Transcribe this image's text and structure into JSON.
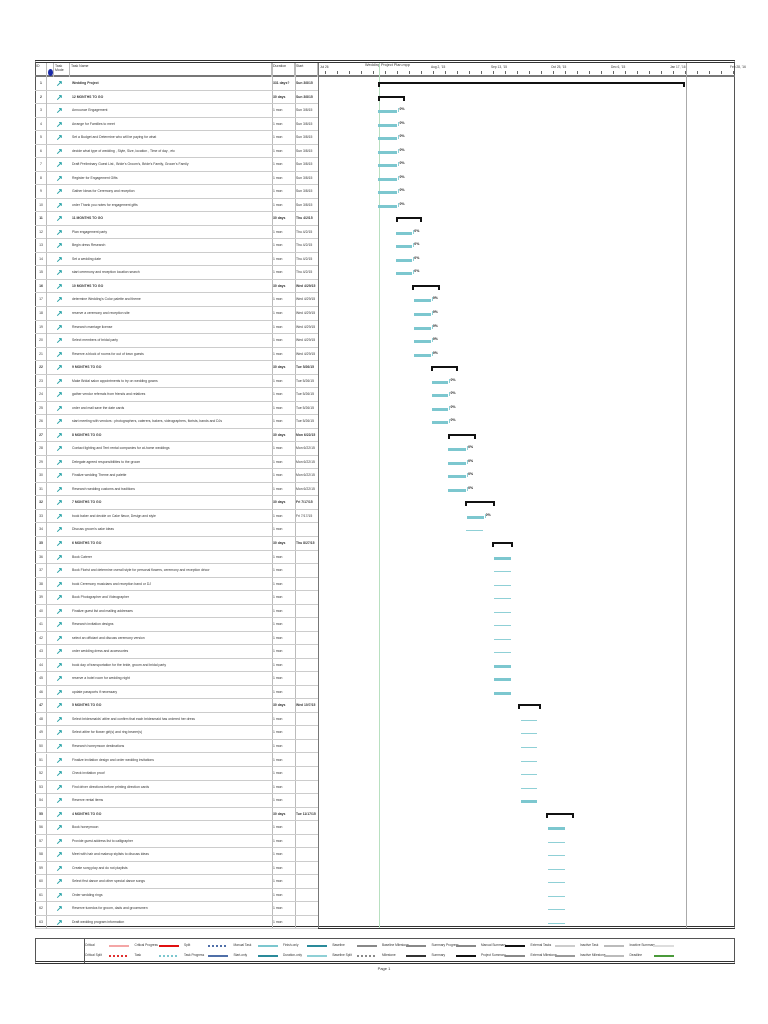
{
  "header": {
    "id": "ID",
    "indicators": "i",
    "mode": "Task Mode",
    "name": "Task Name",
    "duration": "Duration",
    "start": "Start",
    "chart_title": "Wedding Project Plan.mpp",
    "timescale": [
      "Jul 26",
      "Aug 2, '15",
      "Sep 13, '15",
      "Oct 25, '15",
      "Dec 6, '15",
      "Jan 17, '16",
      "Feb 28, '16"
    ]
  },
  "colors": {
    "task": "#7cc7cf",
    "summary": "#111111",
    "mode_icon": "#2aa3a8"
  },
  "tasks": [
    {
      "id": "1",
      "name": "Wedding Project",
      "duration": "331 days?",
      "start": "Sun 3/8/15",
      "summary": true,
      "bar": [
        0,
        331
      ]
    },
    {
      "id": "2",
      "name": "12 MONTHS TO GO",
      "duration": "30 days",
      "start": "Sun 3/8/15",
      "summary": true,
      "bar": [
        0,
        29
      ]
    },
    {
      "id": "3",
      "name": "Announce Engagement",
      "duration": "1 mon",
      "start": "Sun 3/8/15",
      "bar": [
        0,
        21
      ],
      "pct": "0%"
    },
    {
      "id": "4",
      "name": "Arrange for Families to meet",
      "duration": "1 mon",
      "start": "Sun 3/8/15",
      "bar": [
        0,
        21
      ],
      "pct": "0%"
    },
    {
      "id": "5",
      "name": "Set a Budget and Determine who will be paying for what",
      "duration": "1 mon",
      "start": "Sun 3/8/15",
      "bar": [
        0,
        21
      ],
      "pct": "0%"
    },
    {
      "id": "6",
      "name": "decide what type of wedding , Style, Size, location , Time of day , etc",
      "duration": "1 mon",
      "start": "Sun 3/8/15",
      "bar": [
        0,
        21
      ],
      "pct": "0%"
    },
    {
      "id": "7",
      "name": "Draft Preliminary Guest List , Bride's Groom's, Bride's Family, Groom's Family",
      "duration": "1 mon",
      "start": "Sun 3/8/15",
      "bar": [
        0,
        21
      ],
      "pct": "0%"
    },
    {
      "id": "8",
      "name": "Register for Engagement Gifts",
      "duration": "1 mon",
      "start": "Sun 3/8/15",
      "bar": [
        0,
        21
      ],
      "pct": "0%"
    },
    {
      "id": "9",
      "name": "Gather Ideas for Ceremony and reception",
      "duration": "1 mon",
      "start": "Sun 3/8/15",
      "bar": [
        0,
        21
      ],
      "pct": "0%"
    },
    {
      "id": "10",
      "name": "order Thank you notes for engagement gifts",
      "duration": "1 mon",
      "start": "Sun 3/8/15",
      "bar": [
        0,
        21
      ],
      "pct": "0%"
    },
    {
      "id": "11",
      "name": "11 MONTHS TO GO",
      "duration": "30 days",
      "start": "Thu 4/2/15",
      "summary": true,
      "bar": [
        19,
        47
      ]
    },
    {
      "id": "12",
      "name": "Plan engagement party",
      "duration": "1 mon",
      "start": "Thu 4/2/15",
      "bar": [
        19,
        37
      ],
      "pct": "0%"
    },
    {
      "id": "13",
      "name": "Begin dress Research",
      "duration": "1 mon",
      "start": "Thu 4/2/15",
      "bar": [
        19,
        37
      ],
      "pct": "0%"
    },
    {
      "id": "14",
      "name": "Set a wedding date",
      "duration": "1 mon",
      "start": "Thu 4/2/15",
      "bar": [
        19,
        37
      ],
      "pct": "0%"
    },
    {
      "id": "15",
      "name": "start ceremony and reception location search",
      "duration": "1 mon",
      "start": "Thu 4/2/15",
      "bar": [
        19,
        37
      ],
      "pct": "0%"
    },
    {
      "id": "16",
      "name": "10 MONTHS TO GO",
      "duration": "30 days",
      "start": "Wed 4/29/15",
      "summary": true,
      "bar": [
        37,
        67
      ]
    },
    {
      "id": "17",
      "name": "determine Wedding's Color palette and theme",
      "duration": "1 mon",
      "start": "Wed 4/29/15",
      "bar": [
        39,
        57
      ],
      "pct": "0%"
    },
    {
      "id": "18",
      "name": "reserve a ceremony and reception site",
      "duration": "1 mon",
      "start": "Wed 4/29/15",
      "bar": [
        39,
        57
      ],
      "pct": "0%"
    },
    {
      "id": "19",
      "name": "Research marriage license",
      "duration": "1 mon",
      "start": "Wed 4/29/15",
      "bar": [
        39,
        57
      ],
      "pct": "0%"
    },
    {
      "id": "20",
      "name": "Select members of bridal party",
      "duration": "1 mon",
      "start": "Wed 4/29/15",
      "bar": [
        39,
        57
      ],
      "pct": "0%"
    },
    {
      "id": "21",
      "name": "Reserve a block of rooms for out of town guests",
      "duration": "1 mon",
      "start": "Wed 4/29/15",
      "bar": [
        39,
        57
      ],
      "pct": "0%"
    },
    {
      "id": "22",
      "name": "9 MONTHS TO GO",
      "duration": "30 days",
      "start": "Tue 5/26/15",
      "summary": true,
      "bar": [
        57,
        86
      ]
    },
    {
      "id": "23",
      "name": "Make Bridal salon appointments to try on wedding gowns",
      "duration": "1 mon",
      "start": "Tue 5/26/15",
      "bar": [
        58,
        76
      ],
      "pct": "0%"
    },
    {
      "id": "24",
      "name": "gather vendor referrals from friends and relatives",
      "duration": "1 mon",
      "start": "Tue 5/26/15",
      "bar": [
        58,
        76
      ],
      "pct": "0%"
    },
    {
      "id": "25",
      "name": "order and mail save the date cards",
      "duration": "1 mon",
      "start": "Tue 5/26/15",
      "bar": [
        58,
        76
      ],
      "pct": "0%"
    },
    {
      "id": "26",
      "name": "start meeting with vendors : photographers, caterers, bakers, videographers, florists, bands and DJs",
      "duration": "1 mon",
      "start": "Tue 5/26/15",
      "bar": [
        58,
        76
      ],
      "pct": "0%"
    },
    {
      "id": "27",
      "name": "8 MONTHS TO GO",
      "duration": "30 days",
      "start": "Mon 6/22/15",
      "summary": true,
      "bar": [
        76,
        106
      ]
    },
    {
      "id": "28",
      "name": "Contact lighting and Tent rental companies for at-home weddings",
      "duration": "1 mon",
      "start": "Mon 6/22/15",
      "bar": [
        76,
        95
      ],
      "pct": "0%"
    },
    {
      "id": "29",
      "name": "Delegate agreed responsibilities to the groom",
      "duration": "1 mon",
      "start": "Mon 6/22/15",
      "bar": [
        76,
        95
      ],
      "pct": "0%"
    },
    {
      "id": "30",
      "name": "Finalize wedding Theme and palette",
      "duration": "1 mon",
      "start": "Mon 6/22/15",
      "bar": [
        76,
        95
      ],
      "pct": "0%"
    },
    {
      "id": "31",
      "name": "Research wedding customs and traditions",
      "duration": "1 mon",
      "start": "Mon 6/22/15",
      "bar": [
        76,
        95
      ],
      "pct": "0%"
    },
    {
      "id": "32",
      "name": "7 MONTHS TO GO",
      "duration": "30 days",
      "start": "Fri 7/17/15",
      "summary": true,
      "bar": [
        94,
        126
      ]
    },
    {
      "id": "33",
      "name": "book baker and decide on Cake flavor, Design and style",
      "duration": "1 mon",
      "start": "Fri 7/17/15",
      "bar": [
        96,
        114
      ],
      "pct": "0%"
    },
    {
      "id": "34",
      "name": "Discuss groom's cake ideas",
      "duration": "1 mon",
      "start": "",
      "bar": [
        95,
        113
      ]
    },
    {
      "id": "35",
      "name": "6 MONTHS TO GO",
      "duration": "30 days",
      "start": "Thu 8/27/15",
      "summary": true,
      "bar": [
        123,
        146
      ]
    },
    {
      "id": "36",
      "name": "Book Caterer",
      "duration": "1 mon",
      "start": "",
      "bar": [
        125,
        144
      ],
      "thick": true
    },
    {
      "id": "37",
      "name": "Book Florist and determine overall style for personal flowers, ceremony and reception décor",
      "duration": "1 mon",
      "start": "",
      "bar": [
        125,
        144
      ]
    },
    {
      "id": "38",
      "name": "book Ceremony musicians and reception band or DJ",
      "duration": "1 mon",
      "start": "",
      "bar": [
        125,
        144
      ]
    },
    {
      "id": "39",
      "name": "Book Photographer and Videographer",
      "duration": "1 mon",
      "start": "",
      "bar": [
        125,
        144
      ]
    },
    {
      "id": "40",
      "name": "Finalize guest list and mailing addresses",
      "duration": "1 mon",
      "start": "",
      "bar": [
        125,
        144
      ]
    },
    {
      "id": "41",
      "name": "Research invitation designs",
      "duration": "1 mon",
      "start": "",
      "bar": [
        125,
        144
      ]
    },
    {
      "id": "42",
      "name": "select an officiant and discuss ceremony version",
      "duration": "1 mon",
      "start": "",
      "bar": [
        125,
        144
      ]
    },
    {
      "id": "43",
      "name": "order wedding dress and accessories",
      "duration": "1 mon",
      "start": "",
      "bar": [
        125,
        144
      ]
    },
    {
      "id": "44",
      "name": "book day of transportation for the bride, groom and bridal party",
      "duration": "1 mon",
      "start": "",
      "bar": [
        125,
        144
      ],
      "thick": true
    },
    {
      "id": "45",
      "name": "reserve a hotel room for wedding night",
      "duration": "1 mon",
      "start": "",
      "bar": [
        125,
        144
      ],
      "thick": true
    },
    {
      "id": "46",
      "name": "update passports if necessary",
      "duration": "1 mon",
      "start": "",
      "bar": [
        125,
        144
      ],
      "thick": true
    },
    {
      "id": "47",
      "name": "5 MONTHS TO GO",
      "duration": "30 days",
      "start": "Wed 10/7/15",
      "summary": true,
      "bar": [
        151,
        176
      ]
    },
    {
      "id": "48",
      "name": "Select bridesmaids' attire and confirm that each bridesmaid has ordered her dress",
      "duration": "1 mon",
      "start": "",
      "bar": [
        154,
        172
      ]
    },
    {
      "id": "49",
      "name": "Select attire for flower girl(s) and ring bearer(s)",
      "duration": "1 mon",
      "start": "",
      "bar": [
        154,
        172
      ]
    },
    {
      "id": "50",
      "name": "Research honeymoon destinations",
      "duration": "1 mon",
      "start": "",
      "bar": [
        154,
        172
      ]
    },
    {
      "id": "51",
      "name": "Finalize invitation design and order wedding invitations",
      "duration": "1 mon",
      "start": "",
      "bar": [
        154,
        172
      ]
    },
    {
      "id": "52",
      "name": "Check invitation proof",
      "duration": "1 mon",
      "start": "",
      "bar": [
        154,
        172
      ]
    },
    {
      "id": "53",
      "name": "Find driver directions before printing direction cards",
      "duration": "1 mon",
      "start": "",
      "bar": [
        154,
        172
      ]
    },
    {
      "id": "54",
      "name": "Reserve rental items",
      "duration": "1 mon",
      "start": "",
      "bar": [
        154,
        172
      ],
      "thick": true
    },
    {
      "id": "55",
      "name": "4 MONTHS TO GO",
      "duration": "30 days",
      "start": "Tue 11/17/15",
      "summary": true,
      "bar": [
        181,
        211
      ]
    },
    {
      "id": "56",
      "name": "Book honeymoon",
      "duration": "1 mon",
      "start": "",
      "bar": [
        183,
        202
      ],
      "thick": true
    },
    {
      "id": "57",
      "name": "Provide guest address list to calligrapher",
      "duration": "1 mon",
      "start": "",
      "bar": [
        183,
        202
      ]
    },
    {
      "id": "58",
      "name": "Meet with hair and makeup stylists to discuss ideas",
      "duration": "1 mon",
      "start": "",
      "bar": [
        183,
        202
      ]
    },
    {
      "id": "59",
      "name": "Create song play and do not playlists",
      "duration": "1 mon",
      "start": "",
      "bar": [
        183,
        202
      ]
    },
    {
      "id": "60",
      "name": "Select first dance and other special dance songs",
      "duration": "1 mon",
      "start": "",
      "bar": [
        183,
        202
      ]
    },
    {
      "id": "61",
      "name": "Order wedding rings",
      "duration": "1 mon",
      "start": "",
      "bar": [
        183,
        202
      ]
    },
    {
      "id": "62",
      "name": "Reserve tuxedos for groom, dads and groomsmen",
      "duration": "1 mon",
      "start": "",
      "bar": [
        183,
        202
      ]
    },
    {
      "id": "63",
      "name": "Draft wedding program information",
      "duration": "1 mon",
      "start": "",
      "bar": [
        183,
        202
      ]
    }
  ],
  "legend": [
    {
      "label": "Critical",
      "color": "#f4a6a6"
    },
    {
      "label": "Critical Split",
      "color": "#e03030",
      "dotted": true
    },
    {
      "label": "Critical Progress",
      "color": "#e01010"
    },
    {
      "label": "Task",
      "color": "#7cc7cf",
      "dotted": true
    },
    {
      "label": "Split",
      "color": "#4f6fa8",
      "dotted": true
    },
    {
      "label": "Task Progress",
      "color": "#4f6fa8"
    },
    {
      "label": "Manual Task",
      "color": "#7cc7cf"
    },
    {
      "label": "Start-only",
      "color": "#2a8a9a"
    },
    {
      "label": "Finish-only",
      "color": "#2a8a9a"
    },
    {
      "label": "Duration-only",
      "color": "#8fd0d6"
    },
    {
      "label": "Baseline",
      "color": "#888888"
    },
    {
      "label": "Baseline Split",
      "color": "#888888",
      "dotted": true
    },
    {
      "label": "Baseline Milestone",
      "color": "#888888"
    },
    {
      "label": "Milestone",
      "color": "#333333"
    },
    {
      "label": "Summary Progress",
      "color": "#888888"
    },
    {
      "label": "Summary",
      "color": "#111111"
    },
    {
      "label": "Manual Summary",
      "color": "#111111"
    },
    {
      "label": "Project Summary",
      "color": "#888888"
    },
    {
      "label": "External Tasks",
      "color": "#cccccc"
    },
    {
      "label": "External Milestone",
      "color": "#999999"
    },
    {
      "label": "Inactive Task",
      "color": "#ffffff"
    },
    {
      "label": "Inactive Milestone",
      "color": "#ffffff"
    },
    {
      "label": "Inactive Summary",
      "color": "#dddddd"
    },
    {
      "label": "Deadline",
      "color": "#4a9a3a"
    }
  ],
  "footer": {
    "page": "Page 1"
  }
}
